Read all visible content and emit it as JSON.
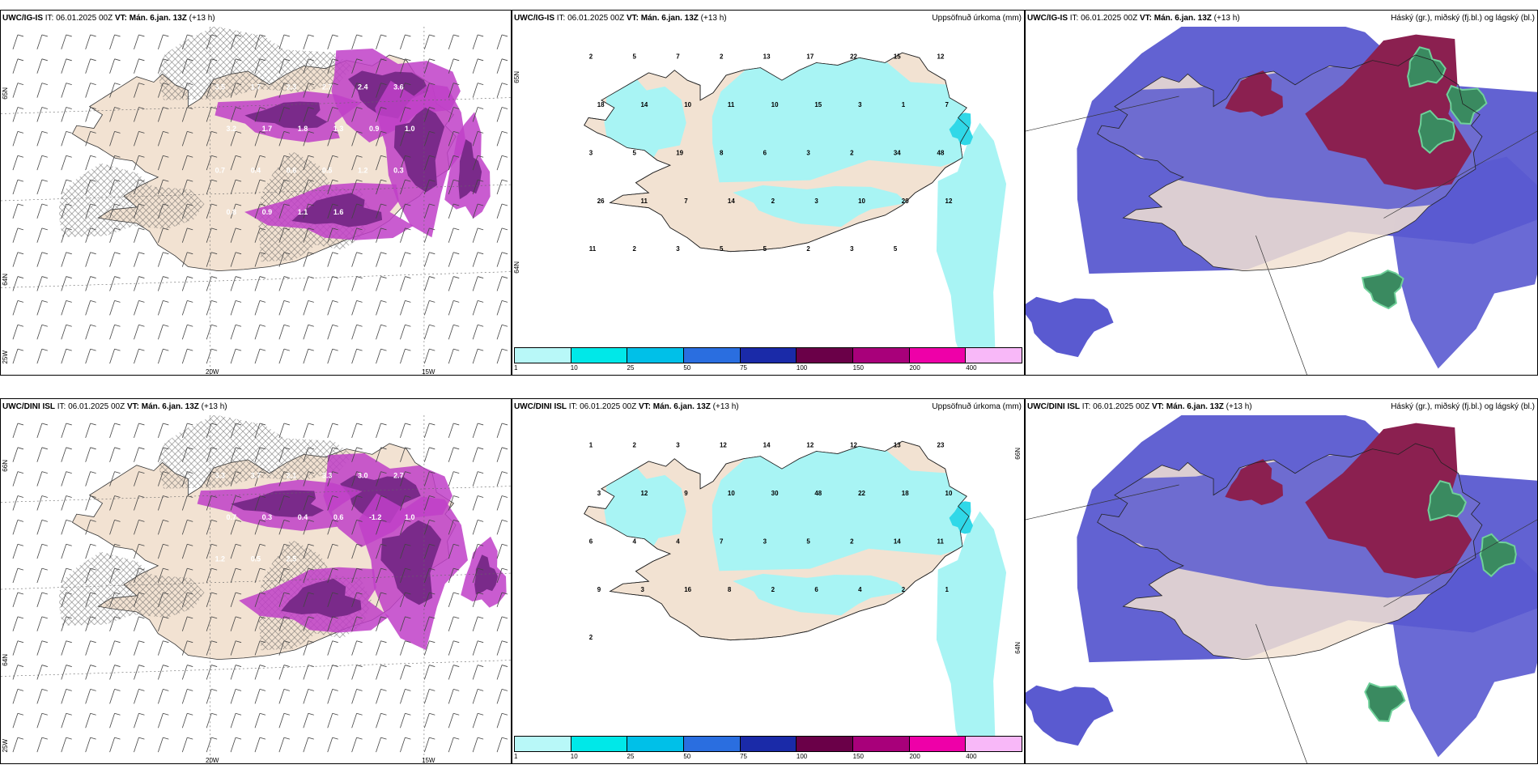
{
  "panels": [
    {
      "id": "p1",
      "model": "UWC/IG-IS",
      "it": "IT: 06.01.2025 00Z",
      "vt": "VT: Mán. 6.jan. 13Z",
      "lead": "(+13 h)",
      "title": "",
      "axes": {
        "lat_labels": [
          "65N",
          "64N",
          "25W"
        ],
        "lon_labels": [
          "20W",
          "15W"
        ]
      },
      "values": [
        "3.5",
        "1.7",
        "2.3",
        "2.7",
        "2.4",
        "3.6",
        "3.2",
        "1.7",
        "1.8",
        "1.3",
        "0.9",
        "1.0",
        "0.7",
        "0.4",
        "0.6",
        "0.5",
        "1.2",
        "0.3",
        "0.8",
        "0.9",
        "1.1",
        "1.6"
      ]
    },
    {
      "id": "p2",
      "model": "UWC/IG-IS",
      "it": "IT: 06.01.2025 00Z",
      "vt": "VT: Mán. 6.jan. 13Z",
      "lead": "(+13 h)",
      "title": "Uppsöfnuð úrkoma (mm)",
      "axes": {
        "lat_labels": [
          "65N",
          "64N"
        ],
        "lon_labels": []
      },
      "values": [
        "2",
        "5",
        "7",
        "2",
        "13",
        "17",
        "22",
        "15",
        "12",
        "18",
        "14",
        "10",
        "11",
        "10",
        "15",
        "3",
        "1",
        "7",
        "3",
        "5",
        "19",
        "8",
        "6",
        "3",
        "2",
        "34",
        "48",
        "26",
        "11",
        "7",
        "14",
        "2",
        "3",
        "10",
        "20",
        "12",
        "11",
        "2",
        "3",
        "5",
        "5",
        "2",
        "3",
        "5"
      ],
      "legend": {
        "ticks": [
          "1",
          "10",
          "25",
          "50",
          "75",
          "100",
          "150",
          "200",
          "400"
        ],
        "colors": [
          "#b8f8f8",
          "#00e8e8",
          "#00c0e8",
          "#2a6ee0",
          "#1a2aa8",
          "#6a0048",
          "#a8007a",
          "#ee00a8",
          "#f8b8f8"
        ]
      }
    },
    {
      "id": "p3",
      "model": "UWC/IG-IS",
      "it": "IT: 06.01.2025 00Z",
      "vt": "VT: Mán. 6.jan. 13Z",
      "lead": "(+13 h)",
      "title": "Háský (gr.), miðský (fj.bl.) og lágský (bl.)",
      "axes": {
        "lat_labels": [],
        "lon_labels": []
      },
      "values": []
    },
    {
      "id": "p4",
      "model": "UWC/DINI ISL",
      "it": "IT: 06.01.2025 00Z",
      "vt": "VT: Mán. 6.jan. 13Z",
      "lead": "(+13 h)",
      "title": "",
      "axes": {
        "lat_labels": [
          "66N",
          "64N",
          "25W"
        ],
        "lon_labels": [
          "20W",
          "15W"
        ]
      },
      "values": [
        "3.3",
        "3.7",
        "2.1",
        "3.3",
        "3.0",
        "2.7",
        "0.7",
        "0.3",
        "0.4",
        "0.6",
        "-1.2",
        "1.0",
        "1.2",
        "0.5",
        "2.5"
      ]
    },
    {
      "id": "p5",
      "model": "UWC/DINI ISL",
      "it": "IT: 06.01.2025 00Z",
      "vt": "VT: Mán. 6.jan. 13Z",
      "lead": "(+13 h)",
      "title": "Uppsöfnuð úrkoma (mm)",
      "axes": {
        "lat_labels": [
          "66N",
          "64N"
        ],
        "lon_labels": []
      },
      "values": [
        "1",
        "2",
        "3",
        "12",
        "14",
        "12",
        "12",
        "13",
        "23",
        "3",
        "12",
        "9",
        "10",
        "30",
        "48",
        "22",
        "18",
        "10",
        "6",
        "4",
        "4",
        "7",
        "3",
        "5",
        "2",
        "14",
        "11",
        "9",
        "3",
        "16",
        "8",
        "2",
        "6",
        "4",
        "2",
        "1",
        "2"
      ],
      "legend": {
        "ticks": [
          "1",
          "10",
          "25",
          "50",
          "75",
          "100",
          "150",
          "200",
          "400"
        ],
        "colors": [
          "#b8f8f8",
          "#00e8e8",
          "#00c0e8",
          "#2a6ee0",
          "#1a2aa8",
          "#6a0048",
          "#a8007a",
          "#ee00a8",
          "#f8b8f8"
        ]
      }
    },
    {
      "id": "p6",
      "model": "UWC/DINI ISL",
      "it": "IT: 06.01.2025 00Z",
      "vt": "VT: Mán. 6.jan. 13Z",
      "lead": "(+13 h)",
      "title": "Háský (gr.), miðský (fj.bl.) og lágský (bl.)",
      "axes": {
        "lat_labels": [],
        "lon_labels": []
      },
      "values": []
    }
  ],
  "colors": {
    "land": "#f2e2d2",
    "ocean": "#ffffff",
    "magenta": "#c040c8",
    "cyan": "#a8f4f4",
    "low_cloud": "#5a5ad0",
    "mid_cloud": "#8b2050",
    "high_cloud": "#3a8a60"
  }
}
